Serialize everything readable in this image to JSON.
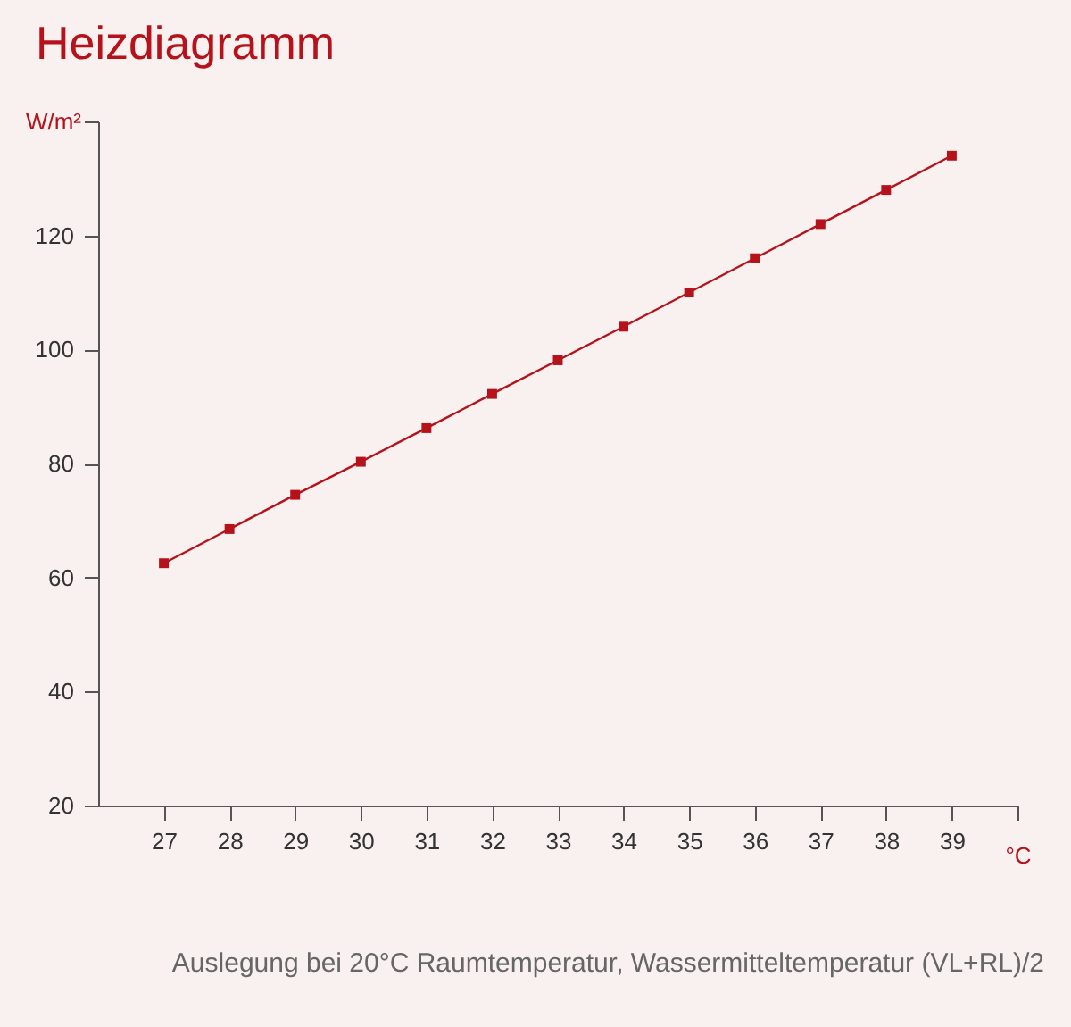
{
  "chart_data": {
    "type": "line",
    "title": "Heizdiagramm",
    "xlabel": "°C",
    "ylabel": "W/m²",
    "x": [
      27,
      28,
      29,
      30,
      31,
      32,
      33,
      34,
      35,
      36,
      37,
      38,
      39
    ],
    "series": [
      {
        "color": "#b5121b",
        "values": [
          62.5,
          68.5,
          74.5,
          80.3,
          86.2,
          92.2,
          98.1,
          104,
          110,
          116,
          122,
          128,
          134
        ]
      }
    ],
    "xlim": [
      26,
      40
    ],
    "xticks": [
      27,
      28,
      29,
      30,
      31,
      32,
      33,
      34,
      35,
      36,
      37,
      38,
      39,
      {
        "value": 40,
        "label": null
      }
    ],
    "ylim": [
      20,
      140
    ],
    "yticks": [
      20,
      40,
      60,
      80,
      100,
      120,
      {
        "value": 140,
        "label": null
      }
    ],
    "grid": false,
    "marker": "square",
    "line_style": "solid",
    "annotations": [
      "Auslegung bei 20°C Raumtemperatur, Wassermitteltemperatur (VL+RL)/2"
    ]
  }
}
